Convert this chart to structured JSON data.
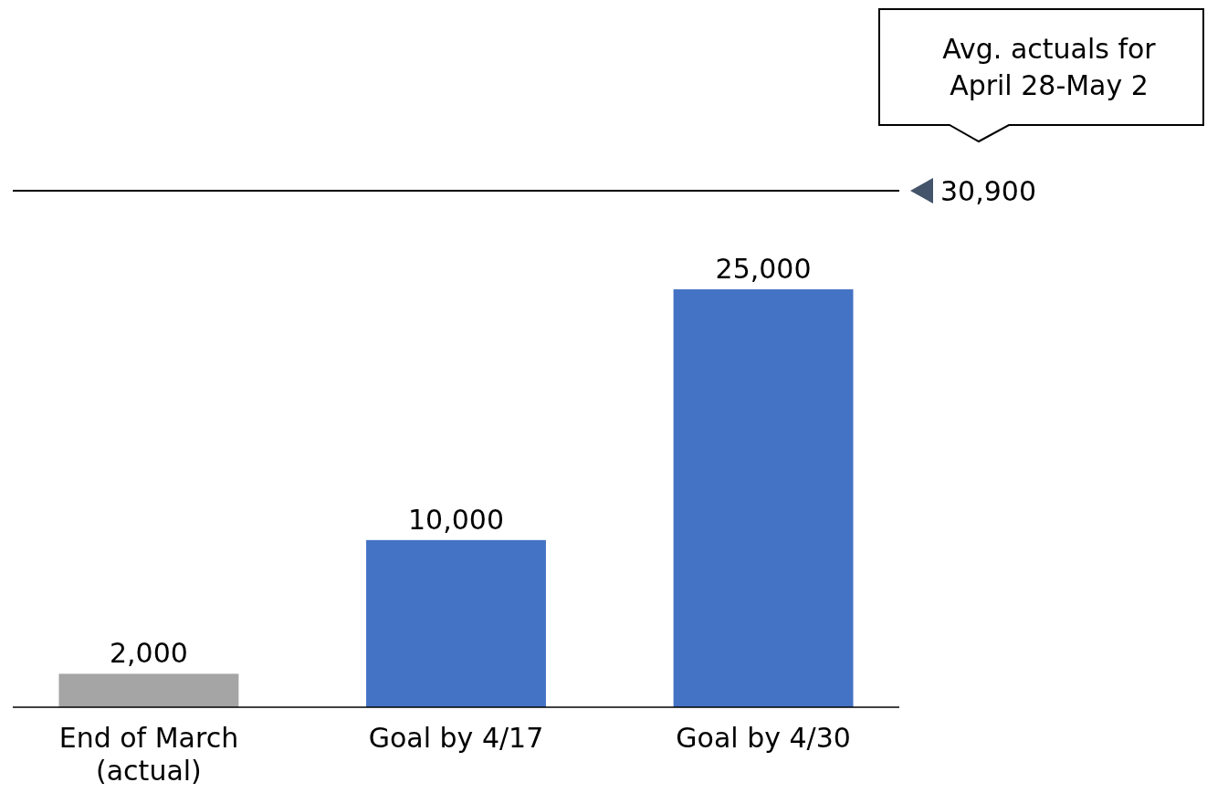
{
  "chart_data": {
    "type": "bar",
    "categories": [
      "End of March (actual)",
      "Goal by 4/17",
      "Goal by 4/30"
    ],
    "values": [
      2000,
      10000,
      25000
    ],
    "colors": [
      "#a5a5a5",
      "#4472c4",
      "#4472c4"
    ],
    "value_labels": [
      "2,000",
      "10,000",
      "25,000"
    ],
    "ref_lines": [
      {
        "axis": "y",
        "value": 30900,
        "label": "30,900",
        "color": "#000000",
        "line_style": "solid"
      }
    ],
    "annotations": [
      "Avg. actuals for April 28-May 2"
    ]
  }
}
